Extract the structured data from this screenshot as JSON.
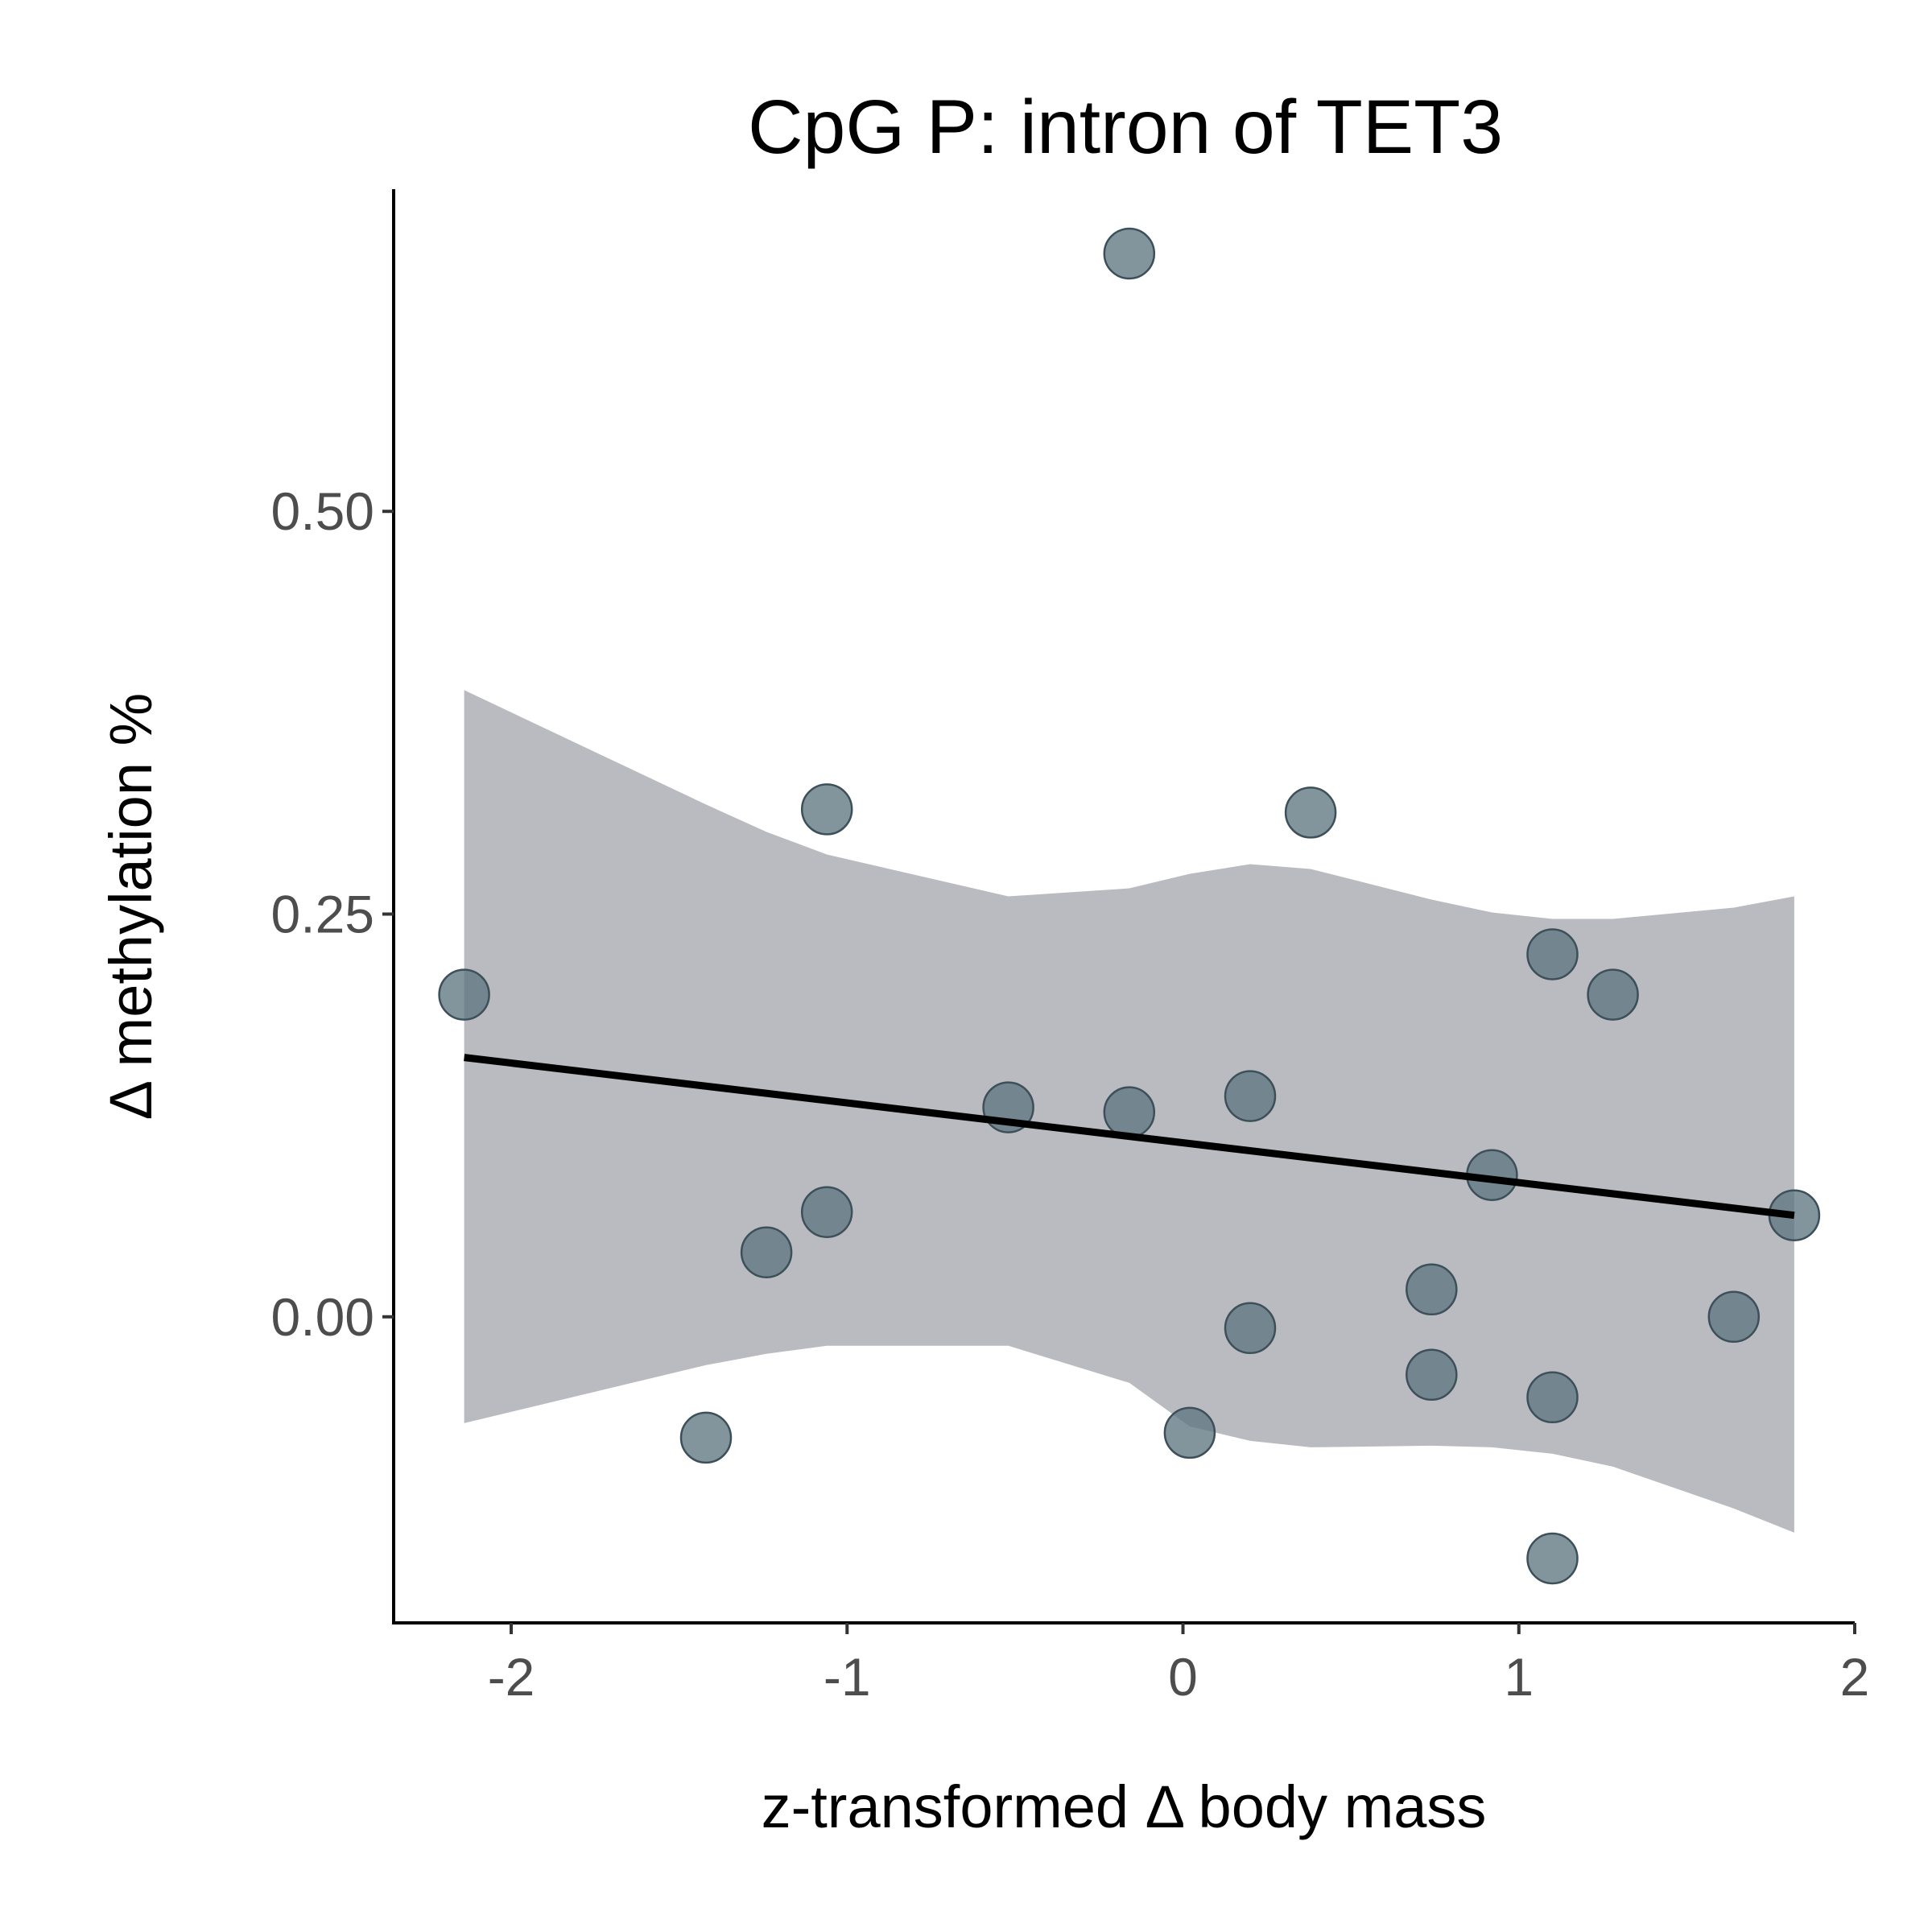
{
  "chart_data": {
    "type": "scatter",
    "title": "CpG P: intron of TET3",
    "xlabel": "z-transformed Δ body mass",
    "ylabel": "Δ methylation %",
    "xlim": [
      -2.35,
      2.0
    ],
    "ylim": [
      -0.19,
      0.7
    ],
    "x_ticks": [
      -2,
      -1,
      0,
      1,
      2
    ],
    "x_tick_labels": [
      "-2",
      "-1",
      "0",
      "1",
      "2"
    ],
    "y_ticks": [
      0.0,
      0.25,
      0.5
    ],
    "y_tick_labels": [
      "0.00",
      "0.25",
      "0.50"
    ],
    "grid": false,
    "legend": "none",
    "colors": {
      "point": "#5f7680",
      "point_stroke": "#3d505a",
      "ribbon": "#babbc0",
      "line": "#000000"
    },
    "points": [
      {
        "x": -2.14,
        "y": 0.2
      },
      {
        "x": -1.42,
        "y": -0.075
      },
      {
        "x": -1.24,
        "y": 0.04
      },
      {
        "x": -1.06,
        "y": 0.315
      },
      {
        "x": -1.06,
        "y": 0.065
      },
      {
        "x": -0.52,
        "y": 0.13
      },
      {
        "x": -0.16,
        "y": 0.66
      },
      {
        "x": -0.16,
        "y": 0.127
      },
      {
        "x": 0.02,
        "y": -0.072
      },
      {
        "x": 0.2,
        "y": 0.137
      },
      {
        "x": 0.2,
        "y": -0.007
      },
      {
        "x": 0.38,
        "y": 0.313
      },
      {
        "x": 0.74,
        "y": 0.017
      },
      {
        "x": 0.74,
        "y": -0.036
      },
      {
        "x": 0.92,
        "y": 0.088
      },
      {
        "x": 1.1,
        "y": 0.225
      },
      {
        "x": 1.1,
        "y": -0.05
      },
      {
        "x": 1.1,
        "y": -0.15
      },
      {
        "x": 1.28,
        "y": 0.2
      },
      {
        "x": 1.64,
        "y": 0.0
      },
      {
        "x": 1.82,
        "y": 0.063
      }
    ],
    "fit_line": {
      "x": [
        -2.14,
        1.82
      ],
      "y": [
        0.161,
        0.063
      ]
    },
    "confidence_band": {
      "x": [
        -2.14,
        -1.42,
        -1.24,
        -1.06,
        -0.52,
        -0.16,
        0.02,
        0.2,
        0.38,
        0.74,
        0.92,
        1.1,
        1.28,
        1.64,
        1.82
      ],
      "upper": [
        0.389,
        0.318,
        0.301,
        0.287,
        0.261,
        0.266,
        0.275,
        0.281,
        0.278,
        0.259,
        0.251,
        0.247,
        0.247,
        0.254,
        0.261
      ],
      "lower": [
        -0.066,
        -0.03,
        -0.023,
        -0.018,
        -0.018,
        -0.041,
        -0.068,
        -0.077,
        -0.081,
        -0.08,
        -0.081,
        -0.085,
        -0.093,
        -0.119,
        -0.134
      ]
    }
  }
}
